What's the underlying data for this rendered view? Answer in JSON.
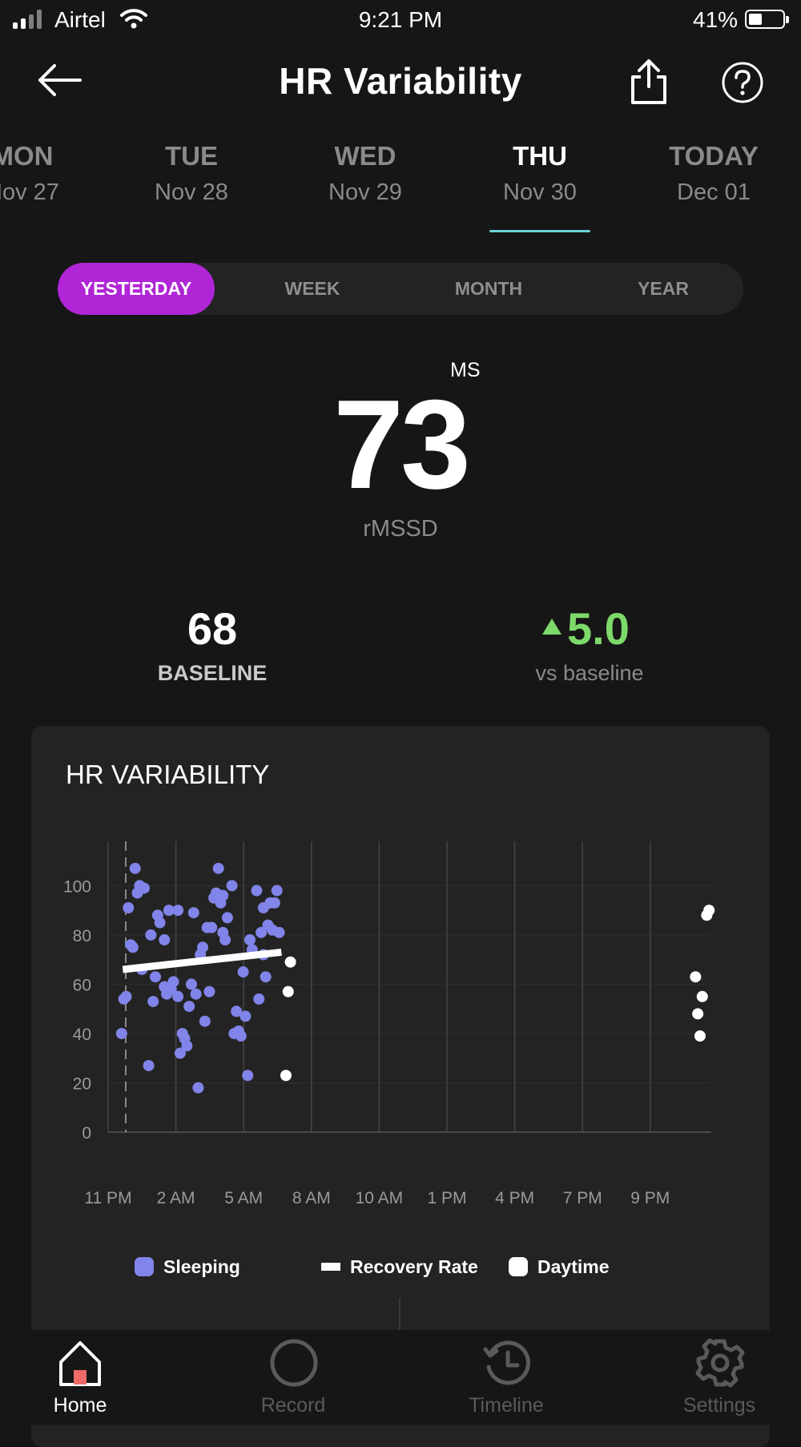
{
  "status_bar": {
    "carrier": "Airtel",
    "time": "9:21 PM",
    "battery": "41%",
    "battery_level": 0.41
  },
  "header": {
    "title": "HR Variability",
    "back_icon": "arrow-left-icon",
    "share_icon": "share-icon",
    "help_icon": "help-icon"
  },
  "days": [
    {
      "name": "MON",
      "date": "Nov 27",
      "active": false
    },
    {
      "name": "TUE",
      "date": "Nov 28",
      "active": false
    },
    {
      "name": "WED",
      "date": "Nov 29",
      "active": false
    },
    {
      "name": "THU",
      "date": "Nov 30",
      "active": true
    },
    {
      "name": "TODAY",
      "date": "Dec 01",
      "active": false
    }
  ],
  "range_tabs": [
    {
      "label": "YESTERDAY",
      "active": true
    },
    {
      "label": "WEEK",
      "active": false
    },
    {
      "label": "MONTH",
      "active": false
    },
    {
      "label": "YEAR",
      "active": false
    }
  ],
  "metric": {
    "value": "73",
    "unit": "MS",
    "label": "rMSSD"
  },
  "baseline": {
    "value": "68",
    "label": "BASELINE"
  },
  "delta": {
    "value": "5.0",
    "label": "vs baseline",
    "color": "#7dd96a"
  },
  "card": {
    "title": "HR VARIABILITY"
  },
  "colors": {
    "accent": "#b025d6",
    "sleeping": "#8184e8",
    "daytime": "#ffffff",
    "underline": "#6dd3d6"
  },
  "chart_data": {
    "type": "scatter",
    "x_tick_labels": [
      "11 PM",
      "2 AM",
      "5 AM",
      "8 AM",
      "10 AM",
      "1 PM",
      "4 PM",
      "7 PM",
      "9 PM"
    ],
    "y_ticks": [
      0,
      20,
      40,
      60,
      80,
      100
    ],
    "ylim": [
      0,
      118
    ],
    "xlim_hours": [
      0,
      26.8
    ],
    "grid": true,
    "legend": [
      "Sleeping",
      "Recovery Rate",
      "Daytime"
    ],
    "legend_position": "bottom",
    "series": [
      {
        "name": "Sleeping",
        "points": [
          [
            0.6,
            40
          ],
          [
            0.7,
            54
          ],
          [
            0.8,
            55
          ],
          [
            0.9,
            91
          ],
          [
            1.0,
            76
          ],
          [
            1.1,
            75
          ],
          [
            1.2,
            107
          ],
          [
            1.3,
            97
          ],
          [
            1.4,
            100
          ],
          [
            1.5,
            66
          ],
          [
            1.6,
            99
          ],
          [
            1.8,
            27
          ],
          [
            1.9,
            80
          ],
          [
            2.0,
            53
          ],
          [
            2.1,
            63
          ],
          [
            2.2,
            88
          ],
          [
            2.3,
            85
          ],
          [
            2.5,
            78
          ],
          [
            2.5,
            59
          ],
          [
            2.6,
            56
          ],
          [
            2.7,
            90
          ],
          [
            2.8,
            58
          ],
          [
            2.9,
            61
          ],
          [
            3.1,
            90
          ],
          [
            3.1,
            55
          ],
          [
            3.2,
            32
          ],
          [
            3.3,
            40
          ],
          [
            3.4,
            38
          ],
          [
            3.5,
            35
          ],
          [
            3.6,
            51
          ],
          [
            3.7,
            60
          ],
          [
            3.8,
            89
          ],
          [
            3.9,
            56
          ],
          [
            4.0,
            18
          ],
          [
            4.1,
            72
          ],
          [
            4.2,
            75
          ],
          [
            4.3,
            45
          ],
          [
            4.4,
            83
          ],
          [
            4.5,
            57
          ],
          [
            4.6,
            83
          ],
          [
            4.7,
            95
          ],
          [
            4.8,
            97
          ],
          [
            4.9,
            107
          ],
          [
            5.0,
            93
          ],
          [
            5.1,
            96
          ],
          [
            5.1,
            81
          ],
          [
            5.2,
            78
          ],
          [
            5.3,
            87
          ],
          [
            5.5,
            100
          ],
          [
            5.6,
            40
          ],
          [
            5.7,
            49
          ],
          [
            5.8,
            41
          ],
          [
            5.9,
            39
          ],
          [
            6.0,
            65
          ],
          [
            6.1,
            47
          ],
          [
            6.2,
            23
          ],
          [
            6.3,
            78
          ],
          [
            6.4,
            74
          ],
          [
            6.6,
            98
          ],
          [
            6.7,
            54
          ],
          [
            6.8,
            81
          ],
          [
            6.9,
            91
          ],
          [
            6.9,
            72
          ],
          [
            7.0,
            63
          ],
          [
            7.1,
            84
          ],
          [
            7.2,
            93
          ],
          [
            7.3,
            82
          ],
          [
            7.4,
            93
          ],
          [
            7.5,
            98
          ],
          [
            7.6,
            81
          ]
        ]
      },
      {
        "name": "Recovery Rate",
        "line": [
          [
            0.65,
            66
          ],
          [
            7.7,
            73
          ]
        ]
      },
      {
        "name": "Daytime",
        "points": [
          [
            7.9,
            23
          ],
          [
            8.0,
            57
          ],
          [
            8.1,
            69
          ],
          [
            26.1,
            63
          ],
          [
            26.2,
            48
          ],
          [
            26.3,
            39
          ],
          [
            26.4,
            55
          ],
          [
            26.6,
            88
          ],
          [
            26.7,
            90
          ]
        ]
      }
    ]
  },
  "tabbar": [
    {
      "label": "Home",
      "icon": "home-icon",
      "active": true
    },
    {
      "label": "Record",
      "icon": "record-icon",
      "active": false
    },
    {
      "label": "Timeline",
      "icon": "timeline-icon",
      "active": false
    },
    {
      "label": "Settings",
      "icon": "gear-icon",
      "active": false
    }
  ]
}
